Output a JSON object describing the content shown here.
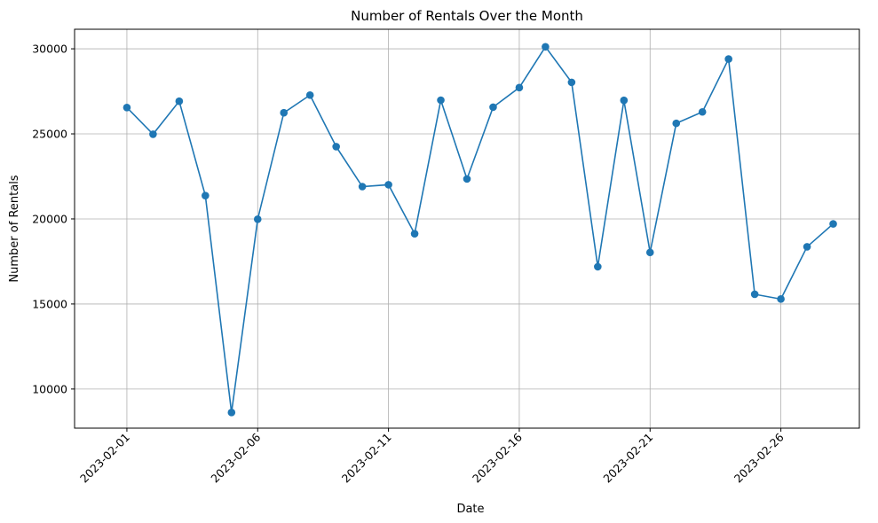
{
  "chart_data": {
    "type": "line",
    "title": "Number of Rentals Over the Month",
    "xlabel": "Date",
    "ylabel": "Number of Rentals",
    "grid": true,
    "x": [
      "2023-02-01",
      "2023-02-02",
      "2023-02-03",
      "2023-02-04",
      "2023-02-05",
      "2023-02-06",
      "2023-02-07",
      "2023-02-08",
      "2023-02-09",
      "2023-02-10",
      "2023-02-11",
      "2023-02-12",
      "2023-02-13",
      "2023-02-14",
      "2023-02-15",
      "2023-02-16",
      "2023-02-17",
      "2023-02-18",
      "2023-02-19",
      "2023-02-20",
      "2023-02-21",
      "2023-02-22",
      "2023-02-23",
      "2023-02-24",
      "2023-02-25",
      "2023-02-26",
      "2023-02-27",
      "2023-02-28"
    ],
    "series": [
      {
        "color": "#1f77b4",
        "values": [
          26550,
          24980,
          26920,
          21370,
          8620,
          19980,
          26240,
          27280,
          24250,
          21900,
          22010,
          19130,
          26980,
          22350,
          26570,
          27720,
          30120,
          28030,
          17190,
          26970,
          18030,
          25620,
          26290,
          29400,
          15570,
          15290,
          18360,
          19710
        ]
      }
    ],
    "xticks": [
      "2023-02-01",
      "2023-02-06",
      "2023-02-11",
      "2023-02-16",
      "2023-02-21",
      "2023-02-26"
    ],
    "yticks": [
      10000,
      15000,
      20000,
      25000,
      30000
    ],
    "xlim": [
      "2023-01-30",
      "2023-03-01"
    ],
    "ylim": [
      7700,
      31150
    ]
  }
}
